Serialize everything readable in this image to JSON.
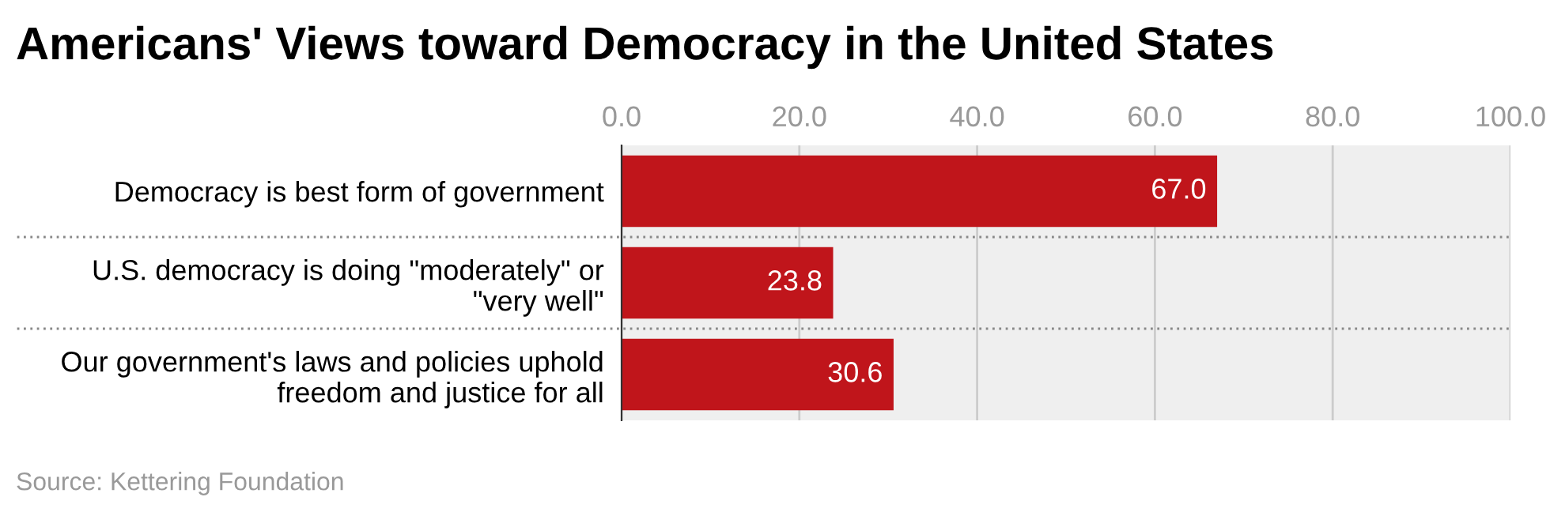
{
  "chart_data": {
    "type": "bar",
    "orientation": "horizontal",
    "title": "Americans' Views toward Democracy in the United States",
    "categories": [
      "Democracy is best form of government",
      "U.S. democracy is doing \"moderately\" or\n\"very well\"",
      "Our government's laws and policies uphold\nfreedom and justice for all"
    ],
    "values": [
      67.0,
      23.8,
      30.6
    ],
    "color": "#c0151b",
    "value_labels": [
      "67.0",
      "23.8",
      "30.6"
    ],
    "xlim": [
      0,
      100
    ],
    "xticks": [
      {
        "value": 0,
        "label": "0.0"
      },
      {
        "value": 20,
        "label": "20.0"
      },
      {
        "value": 40,
        "label": "40.0"
      },
      {
        "value": 60,
        "label": "60.0"
      },
      {
        "value": 80,
        "label": "80.0"
      },
      {
        "value": 100,
        "label": "100.0"
      }
    ],
    "grid": "x",
    "annotations": [
      "Source: Kettering Foundation"
    ]
  }
}
